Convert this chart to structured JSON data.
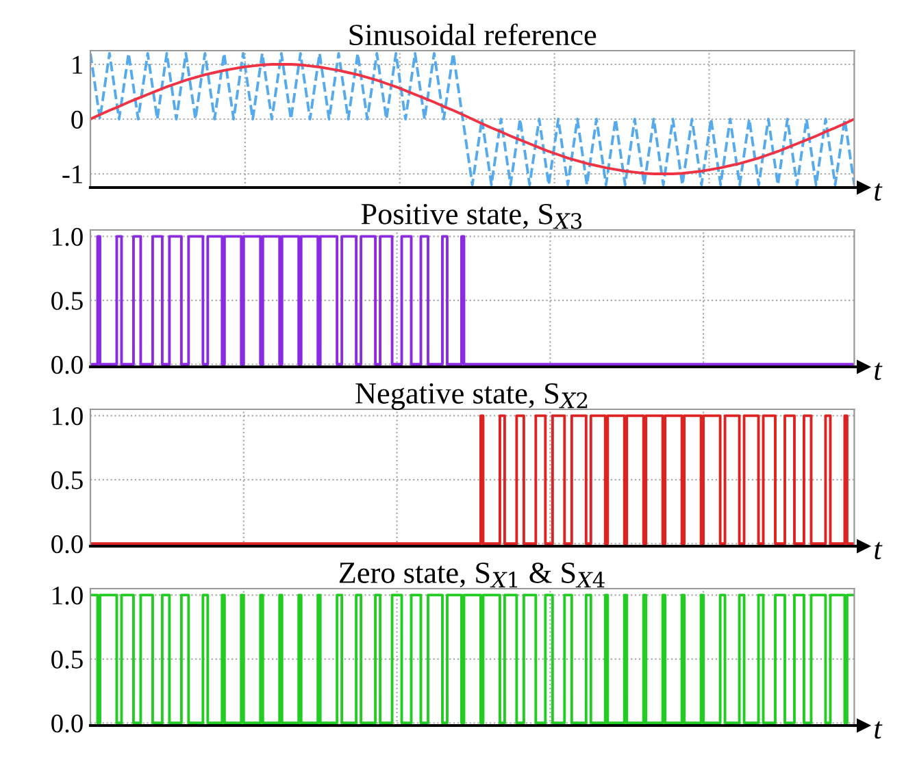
{
  "chart_data": [
    {
      "type": "line",
      "title": "Sinusoidal reference",
      "xlabel": "t",
      "ylim": [
        -1.25,
        1.25
      ],
      "yticks": [
        -1,
        0,
        1
      ],
      "grid": true,
      "tick_labels": "y",
      "categories": [
        null,
        null,
        null,
        null,
        null,
        null,
        null,
        null,
        null,
        null,
        null,
        null,
        null,
        null,
        null,
        null,
        null,
        null,
        null,
        null,
        null,
        null,
        null,
        null,
        null,
        null,
        null,
        null,
        null,
        null,
        null,
        null,
        null,
        null,
        null,
        null,
        null,
        null,
        null,
        null,
        null,
        null,
        null,
        null,
        null,
        null,
        null,
        null,
        null,
        null,
        null,
        null,
        null,
        null,
        null,
        null,
        null,
        null,
        null,
        null,
        null,
        null,
        null,
        null,
        null,
        null,
        null,
        null,
        null,
        null,
        null,
        null,
        null,
        null,
        null,
        null,
        null,
        null,
        null,
        null,
        null
      ],
      "series": [
        {
          "color": "#55aaee",
          "line_style": "dashed",
          "values": [
            1.2,
            0,
            1.2,
            0,
            1.2,
            0,
            1.2,
            0,
            1.2,
            0,
            1.2,
            0,
            1.2,
            0,
            1.2,
            0,
            1.2,
            0,
            1.2,
            0,
            1.2,
            0,
            1.2,
            0,
            1.2,
            0,
            1.2,
            0,
            1.2,
            0,
            1.2,
            0,
            1.2,
            0,
            1.2,
            0,
            1.2,
            0,
            1.2,
            0,
            -1.2,
            0,
            -1.2,
            0,
            -1.2,
            0,
            -1.2,
            0,
            -1.2,
            0,
            -1.2,
            0,
            -1.2,
            0,
            -1.2,
            0,
            -1.2,
            0,
            -1.2,
            0,
            -1.2,
            0,
            -1.2,
            0,
            -1.2,
            0,
            -1.2,
            0,
            -1.2,
            0,
            -1.2,
            0,
            -1.2,
            0,
            -1.2,
            0,
            -1.2,
            0,
            -1.2,
            0,
            -1.2
          ]
        },
        {
          "color": "#ee3344",
          "line_style": "solid",
          "values": [
            0,
            0.08,
            0.16,
            0.23,
            0.31,
            0.38,
            0.45,
            0.52,
            0.59,
            0.65,
            0.71,
            0.76,
            0.81,
            0.85,
            0.89,
            0.92,
            0.95,
            0.97,
            0.99,
            1,
            1,
            1,
            0.99,
            0.97,
            0.95,
            0.92,
            0.89,
            0.85,
            0.81,
            0.76,
            0.71,
            0.65,
            0.59,
            0.52,
            0.45,
            0.38,
            0.31,
            0.23,
            0.16,
            0.08,
            0,
            -0.08,
            -0.16,
            -0.23,
            -0.31,
            -0.38,
            -0.45,
            -0.52,
            -0.59,
            -0.65,
            -0.71,
            -0.76,
            -0.81,
            -0.85,
            -0.89,
            -0.92,
            -0.95,
            -0.97,
            -0.99,
            -1,
            -1,
            -1,
            -0.99,
            -0.97,
            -0.95,
            -0.92,
            -0.89,
            -0.85,
            -0.81,
            -0.76,
            -0.71,
            -0.65,
            -0.59,
            -0.52,
            -0.45,
            -0.38,
            -0.31,
            -0.23,
            -0.16,
            -0.08,
            0
          ]
        }
      ]
    },
    {
      "type": "step",
      "title": "Positive state, S$_{X3}$",
      "xlabel": "t",
      "ylim": [
        -0.02,
        1.05
      ],
      "yticks": [
        {
          "value": 0,
          "label": "0.0"
        },
        {
          "value": 0.5,
          "label": "0.5"
        },
        {
          "value": 1,
          "label": "1.0"
        }
      ],
      "grid": true,
      "tick_labels": "y",
      "categories": [
        null,
        null,
        null,
        null,
        null,
        null,
        null,
        null,
        null,
        null,
        null,
        null,
        null,
        null,
        null,
        null,
        null,
        null,
        null,
        null,
        null,
        null,
        null,
        null,
        null,
        null,
        null,
        null,
        null,
        null,
        null,
        null,
        null,
        null,
        null,
        null,
        null,
        null,
        null,
        null,
        null,
        null,
        null,
        null,
        null,
        null,
        null,
        null,
        null,
        null,
        null,
        null,
        null,
        null,
        null,
        null,
        null,
        null,
        null,
        null,
        null,
        null,
        null,
        null,
        null,
        null,
        null,
        null,
        null,
        null,
        null,
        null,
        null,
        null,
        null,
        null,
        null,
        null,
        null,
        null,
        null,
        null,
        null,
        null,
        null,
        null,
        null,
        null,
        null,
        null,
        null,
        null,
        null,
        null,
        null,
        null,
        null,
        null,
        null,
        null,
        null,
        null,
        null,
        null,
        null,
        null,
        null,
        null,
        null,
        null,
        null,
        null,
        null,
        null,
        null,
        null,
        null,
        null,
        null,
        null,
        null,
        null,
        null,
        null,
        null,
        null,
        null,
        null,
        null,
        null,
        null,
        null,
        null,
        null,
        null,
        null,
        null,
        null,
        null,
        null,
        null,
        null,
        null,
        null,
        null,
        null,
        null,
        null,
        null,
        null,
        null,
        null,
        null,
        null,
        null,
        null,
        null,
        null,
        null,
        null,
        null,
        null,
        null,
        null,
        null,
        null,
        null,
        null,
        null,
        null,
        null,
        null,
        null,
        null,
        null,
        null,
        null,
        null,
        null,
        null,
        null,
        null,
        null,
        null,
        null,
        null,
        null,
        null,
        null,
        null,
        null,
        null,
        null,
        null,
        null,
        null,
        null,
        null,
        null,
        null,
        null,
        null,
        null,
        null,
        null,
        null,
        null,
        null,
        null,
        null,
        null,
        null,
        null,
        null,
        null,
        null,
        null,
        null,
        null,
        null,
        null,
        null,
        null,
        null,
        null,
        null,
        null,
        null,
        null,
        null,
        null,
        null,
        null,
        null,
        null,
        null,
        null,
        null,
        null,
        null,
        null,
        null,
        null,
        null,
        null,
        null,
        null,
        null,
        null,
        null,
        null,
        null,
        null,
        null,
        null,
        null,
        null,
        null,
        null,
        null,
        null,
        null,
        null,
        null,
        null,
        null,
        null,
        null,
        null,
        null,
        null,
        null,
        null,
        null,
        null,
        null,
        null,
        null,
        null,
        null,
        null,
        null,
        null,
        null,
        null,
        null,
        null,
        null,
        null,
        null,
        null,
        null,
        null,
        null,
        null,
        null,
        null,
        null,
        null,
        null,
        null,
        null,
        null,
        null,
        null,
        null,
        null,
        null,
        null,
        null,
        null,
        null,
        null,
        null,
        null,
        null,
        null,
        null,
        null,
        null
      ],
      "series": [
        {
          "color": "#8a2be2",
          "line_style": "solid",
          "values": [
            0,
            0,
            0,
            1,
            0,
            0,
            0,
            0,
            0,
            0,
            0,
            1,
            1,
            0,
            0,
            0,
            0,
            0,
            1,
            1,
            1,
            0,
            0,
            0,
            0,
            0,
            1,
            1,
            1,
            1,
            0,
            0,
            0,
            1,
            1,
            1,
            1,
            1,
            0,
            0,
            0,
            1,
            1,
            1,
            1,
            1,
            1,
            0,
            0,
            1,
            1,
            1,
            1,
            1,
            1,
            0,
            1,
            1,
            1,
            1,
            1,
            1,
            1,
            0,
            1,
            1,
            1,
            1,
            1,
            1,
            1,
            0,
            1,
            1,
            1,
            1,
            1,
            1,
            1,
            0,
            1,
            1,
            1,
            1,
            1,
            1,
            1,
            0,
            1,
            1,
            1,
            1,
            1,
            1,
            1,
            0,
            1,
            1,
            1,
            1,
            1,
            1,
            1,
            0,
            0,
            1,
            1,
            1,
            1,
            1,
            1,
            0,
            0,
            1,
            1,
            1,
            1,
            1,
            1,
            0,
            0,
            1,
            1,
            1,
            1,
            1,
            0,
            0,
            0,
            0,
            1,
            1,
            1,
            1,
            0,
            0,
            0,
            0,
            1,
            1,
            1,
            0,
            0,
            0,
            0,
            0,
            0,
            1,
            1,
            0,
            0,
            0,
            0,
            0,
            0,
            1,
            0,
            0,
            0,
            0,
            0,
            0,
            0,
            0,
            0,
            0,
            0,
            0,
            0,
            0,
            0,
            0,
            0,
            0,
            0,
            0,
            0,
            0,
            0,
            0,
            0,
            0,
            0,
            0,
            0,
            0,
            0,
            0,
            0,
            0,
            0,
            0,
            0,
            0,
            0,
            0,
            0,
            0,
            0,
            0,
            0,
            0,
            0,
            0,
            0,
            0,
            0,
            0,
            0,
            0,
            0,
            0,
            0,
            0,
            0,
            0,
            0,
            0,
            0,
            0,
            0,
            0,
            0,
            0,
            0,
            0,
            0,
            0,
            0,
            0,
            0,
            0,
            0,
            0,
            0,
            0,
            0,
            0,
            0,
            0,
            0,
            0,
            0,
            0,
            0,
            0,
            0,
            0,
            0,
            0,
            0,
            0,
            0,
            0,
            0,
            0,
            0,
            0,
            0,
            0,
            0,
            0,
            0,
            0,
            0,
            0,
            0,
            0,
            0,
            0,
            0,
            0,
            0,
            0,
            0,
            0,
            0,
            0,
            0,
            0,
            0,
            0,
            0,
            0,
            0,
            0,
            0,
            0,
            0,
            0,
            0,
            0,
            0,
            0,
            0,
            0,
            0,
            0,
            0,
            0,
            0,
            0,
            0,
            0,
            0,
            0,
            0,
            0,
            0,
            0,
            0,
            0,
            0,
            0,
            0,
            0,
            0,
            0,
            0,
            0
          ]
        }
      ]
    },
    {
      "type": "step",
      "title": "Negative state, S$_{X2}$",
      "xlabel": "t",
      "ylim": [
        -0.02,
        1.05
      ],
      "yticks": [
        {
          "value": 0,
          "label": "0.0"
        },
        {
          "value": 0.5,
          "label": "0.5"
        },
        {
          "value": 1,
          "label": "1.0"
        }
      ],
      "grid": true,
      "tick_labels": "y",
      "categories": [
        null,
        null,
        null,
        null,
        null,
        null,
        null,
        null,
        null,
        null,
        null,
        null,
        null,
        null,
        null,
        null,
        null,
        null,
        null,
        null,
        null,
        null,
        null,
        null,
        null,
        null,
        null,
        null,
        null,
        null,
        null,
        null,
        null,
        null,
        null,
        null,
        null,
        null,
        null,
        null,
        null,
        null,
        null,
        null,
        null,
        null,
        null,
        null,
        null,
        null,
        null,
        null,
        null,
        null,
        null,
        null,
        null,
        null,
        null,
        null,
        null,
        null,
        null,
        null,
        null,
        null,
        null,
        null,
        null,
        null,
        null,
        null,
        null,
        null,
        null,
        null,
        null,
        null,
        null,
        null,
        null,
        null,
        null,
        null,
        null,
        null,
        null,
        null,
        null,
        null,
        null,
        null,
        null,
        null,
        null,
        null,
        null,
        null,
        null,
        null,
        null,
        null,
        null,
        null,
        null,
        null,
        null,
        null,
        null,
        null,
        null,
        null,
        null,
        null,
        null,
        null,
        null,
        null,
        null,
        null,
        null,
        null,
        null,
        null,
        null,
        null,
        null,
        null,
        null,
        null,
        null,
        null,
        null,
        null,
        null,
        null,
        null,
        null,
        null,
        null,
        null,
        null,
        null,
        null,
        null,
        null,
        null,
        null,
        null,
        null,
        null,
        null,
        null,
        null,
        null,
        null,
        null,
        null,
        null,
        null,
        null,
        null,
        null,
        null,
        null,
        null,
        null,
        null,
        null,
        null,
        null,
        null,
        null,
        null,
        null,
        null,
        null,
        null,
        null,
        null,
        null,
        null,
        null,
        null,
        null,
        null,
        null,
        null,
        null,
        null,
        null,
        null,
        null,
        null,
        null,
        null,
        null,
        null,
        null,
        null,
        null,
        null,
        null,
        null,
        null,
        null,
        null,
        null,
        null,
        null,
        null,
        null,
        null,
        null,
        null,
        null,
        null,
        null,
        null,
        null,
        null,
        null,
        null,
        null,
        null,
        null,
        null,
        null,
        null,
        null,
        null,
        null,
        null,
        null,
        null,
        null,
        null,
        null,
        null,
        null,
        null,
        null,
        null,
        null,
        null,
        null,
        null,
        null,
        null,
        null,
        null,
        null,
        null,
        null,
        null,
        null,
        null,
        null,
        null,
        null,
        null,
        null,
        null,
        null,
        null,
        null,
        null,
        null,
        null,
        null,
        null,
        null,
        null,
        null,
        null,
        null,
        null,
        null,
        null,
        null,
        null,
        null,
        null,
        null,
        null,
        null,
        null,
        null,
        null,
        null,
        null,
        null,
        null,
        null,
        null,
        null,
        null,
        null,
        null,
        null,
        null,
        null,
        null,
        null,
        null,
        null,
        null,
        null,
        null,
        null,
        null,
        null,
        null,
        null,
        null,
        null,
        null,
        null,
        null,
        null
      ],
      "series": [
        {
          "color": "#dd2222",
          "line_style": "solid",
          "values": [
            0,
            0,
            0,
            0,
            0,
            0,
            0,
            0,
            0,
            0,
            0,
            0,
            0,
            0,
            0,
            0,
            0,
            0,
            0,
            0,
            0,
            0,
            0,
            0,
            0,
            0,
            0,
            0,
            0,
            0,
            0,
            0,
            0,
            0,
            0,
            0,
            0,
            0,
            0,
            0,
            0,
            0,
            0,
            0,
            0,
            0,
            0,
            0,
            0,
            0,
            0,
            0,
            0,
            0,
            0,
            0,
            0,
            0,
            0,
            0,
            0,
            0,
            0,
            0,
            0,
            0,
            0,
            0,
            0,
            0,
            0,
            0,
            0,
            0,
            0,
            0,
            0,
            0,
            0,
            0,
            0,
            0,
            0,
            0,
            0,
            0,
            0,
            0,
            0,
            0,
            0,
            0,
            0,
            0,
            0,
            0,
            0,
            0,
            0,
            0,
            0,
            0,
            0,
            0,
            0,
            0,
            0,
            0,
            0,
            0,
            0,
            0,
            0,
            0,
            0,
            0,
            0,
            0,
            0,
            0,
            0,
            0,
            0,
            0,
            0,
            0,
            0,
            0,
            0,
            0,
            0,
            0,
            0,
            0,
            0,
            0,
            0,
            0,
            0,
            0,
            0,
            0,
            0,
            0,
            0,
            0,
            0,
            0,
            0,
            0,
            0,
            0,
            0,
            0,
            0,
            0,
            0,
            0,
            0,
            0,
            0,
            0,
            0,
            1,
            0,
            0,
            0,
            0,
            0,
            0,
            0,
            1,
            1,
            0,
            0,
            0,
            0,
            0,
            1,
            1,
            1,
            0,
            0,
            0,
            0,
            0,
            1,
            1,
            1,
            1,
            0,
            0,
            0,
            1,
            1,
            1,
            1,
            1,
            0,
            0,
            0,
            1,
            1,
            1,
            1,
            1,
            1,
            0,
            0,
            1,
            1,
            1,
            1,
            1,
            1,
            0,
            1,
            1,
            1,
            1,
            1,
            1,
            1,
            0,
            1,
            1,
            1,
            1,
            1,
            1,
            1,
            0,
            1,
            1,
            1,
            1,
            1,
            1,
            1,
            0,
            1,
            1,
            1,
            1,
            1,
            1,
            1,
            0,
            1,
            1,
            1,
            1,
            1,
            1,
            1,
            0,
            1,
            1,
            1,
            1,
            1,
            1,
            1,
            0,
            0,
            1,
            1,
            1,
            1,
            1,
            1,
            0,
            0,
            1,
            1,
            1,
            1,
            1,
            1,
            0,
            0,
            1,
            1,
            1,
            1,
            1,
            0,
            0,
            0,
            0,
            1,
            1,
            1,
            1,
            0,
            0,
            0,
            0,
            1,
            1,
            1,
            0,
            0,
            0,
            0,
            0,
            0,
            1,
            1,
            0,
            0,
            0,
            0,
            0,
            0,
            1,
            0,
            0,
            0,
            0
          ]
        }
      ]
    },
    {
      "type": "step",
      "title": "Zero state, S$_{X1}$ & S$_{X4}$",
      "xlabel": "t",
      "ylim": [
        -0.02,
        1.05
      ],
      "yticks": [
        {
          "value": 0,
          "label": "0.0"
        },
        {
          "value": 0.5,
          "label": "0.5"
        },
        {
          "value": 1,
          "label": "1.0"
        }
      ],
      "grid": true,
      "tick_labels": "y",
      "categories": [
        null,
        null,
        null,
        null,
        null,
        null,
        null,
        null,
        null,
        null,
        null,
        null,
        null,
        null,
        null,
        null,
        null,
        null,
        null,
        null,
        null,
        null,
        null,
        null,
        null,
        null,
        null,
        null,
        null,
        null,
        null,
        null,
        null,
        null,
        null,
        null,
        null,
        null,
        null,
        null,
        null,
        null,
        null,
        null,
        null,
        null,
        null,
        null,
        null,
        null,
        null,
        null,
        null,
        null,
        null,
        null,
        null,
        null,
        null,
        null,
        null,
        null,
        null,
        null,
        null,
        null,
        null,
        null,
        null,
        null,
        null,
        null,
        null,
        null,
        null,
        null,
        null,
        null,
        null,
        null,
        null,
        null,
        null,
        null,
        null,
        null,
        null,
        null,
        null,
        null,
        null,
        null,
        null,
        null,
        null,
        null,
        null,
        null,
        null,
        null,
        null,
        null,
        null,
        null,
        null,
        null,
        null,
        null,
        null,
        null,
        null,
        null,
        null,
        null,
        null,
        null,
        null,
        null,
        null,
        null,
        null,
        null,
        null,
        null,
        null,
        null,
        null,
        null,
        null,
        null,
        null,
        null,
        null,
        null,
        null,
        null,
        null,
        null,
        null,
        null,
        null,
        null,
        null,
        null,
        null,
        null,
        null,
        null,
        null,
        null,
        null,
        null,
        null,
        null,
        null,
        null,
        null,
        null,
        null,
        null,
        null,
        null,
        null,
        null,
        null,
        null,
        null,
        null,
        null,
        null,
        null,
        null,
        null,
        null,
        null,
        null,
        null,
        null,
        null,
        null,
        null,
        null,
        null,
        null,
        null,
        null,
        null,
        null,
        null,
        null,
        null,
        null,
        null,
        null,
        null,
        null,
        null,
        null,
        null,
        null,
        null,
        null,
        null,
        null,
        null,
        null,
        null,
        null,
        null,
        null,
        null,
        null,
        null,
        null,
        null,
        null,
        null,
        null,
        null,
        null,
        null,
        null,
        null,
        null,
        null,
        null,
        null,
        null,
        null,
        null,
        null,
        null,
        null,
        null,
        null,
        null,
        null,
        null,
        null,
        null,
        null,
        null,
        null,
        null,
        null,
        null,
        null,
        null,
        null,
        null,
        null,
        null,
        null,
        null,
        null,
        null,
        null,
        null,
        null,
        null,
        null,
        null,
        null,
        null,
        null,
        null,
        null,
        null,
        null,
        null,
        null,
        null,
        null,
        null,
        null,
        null,
        null,
        null,
        null,
        null,
        null,
        null,
        null,
        null,
        null,
        null,
        null,
        null,
        null,
        null,
        null,
        null,
        null,
        null,
        null,
        null,
        null,
        null,
        null,
        null,
        null,
        null,
        null,
        null,
        null,
        null,
        null,
        null,
        null,
        null,
        null,
        null,
        null,
        null,
        null,
        null,
        null,
        null,
        null,
        null
      ],
      "series": [
        {
          "color": "#22cc22",
          "line_style": "solid",
          "values": [
            1,
            1,
            1,
            0,
            1,
            1,
            1,
            1,
            1,
            1,
            1,
            0,
            0,
            1,
            1,
            1,
            1,
            1,
            0,
            0,
            0,
            1,
            1,
            1,
            1,
            1,
            0,
            0,
            0,
            0,
            1,
            1,
            1,
            0,
            0,
            0,
            0,
            0,
            1,
            1,
            1,
            0,
            0,
            0,
            0,
            0,
            0,
            1,
            1,
            0,
            0,
            0,
            0,
            0,
            0,
            1,
            0,
            0,
            0,
            0,
            0,
            0,
            0,
            1,
            0,
            0,
            0,
            0,
            0,
            0,
            0,
            1,
            0,
            0,
            0,
            0,
            0,
            0,
            0,
            1,
            0,
            0,
            0,
            0,
            0,
            0,
            0,
            1,
            0,
            0,
            0,
            0,
            0,
            0,
            0,
            1,
            0,
            0,
            0,
            0,
            0,
            0,
            0,
            1,
            1,
            0,
            0,
            0,
            0,
            0,
            0,
            1,
            1,
            0,
            0,
            0,
            0,
            0,
            0,
            1,
            1,
            0,
            0,
            0,
            0,
            0,
            1,
            1,
            1,
            1,
            0,
            0,
            0,
            0,
            1,
            1,
            1,
            1,
            0,
            0,
            0,
            1,
            1,
            1,
            1,
            1,
            1,
            0,
            0,
            1,
            1,
            1,
            1,
            1,
            1,
            0,
            1,
            1,
            1,
            1,
            1,
            1,
            1,
            0,
            1,
            1,
            1,
            1,
            1,
            1,
            1,
            0,
            0,
            1,
            1,
            1,
            1,
            1,
            0,
            0,
            0,
            1,
            1,
            1,
            1,
            1,
            0,
            0,
            0,
            0,
            1,
            1,
            1,
            0,
            0,
            0,
            0,
            0,
            1,
            1,
            1,
            0,
            0,
            0,
            0,
            0,
            0,
            1,
            1,
            0,
            0,
            0,
            0,
            0,
            0,
            1,
            0,
            0,
            0,
            0,
            0,
            0,
            0,
            1,
            0,
            0,
            0,
            0,
            0,
            0,
            0,
            1,
            0,
            0,
            0,
            0,
            0,
            0,
            0,
            1,
            0,
            0,
            0,
            0,
            0,
            0,
            0,
            1,
            0,
            0,
            0,
            0,
            0,
            0,
            0,
            1,
            0,
            0,
            0,
            0,
            0,
            0,
            0,
            1,
            1,
            0,
            0,
            0,
            0,
            0,
            0,
            1,
            1,
            0,
            0,
            0,
            0,
            0,
            0,
            1,
            1,
            0,
            0,
            0,
            0,
            0,
            1,
            1,
            1,
            1,
            0,
            0,
            0,
            0,
            1,
            1,
            1,
            1,
            0,
            0,
            0,
            1,
            1,
            1,
            1,
            1,
            1,
            0,
            0,
            1,
            1,
            1,
            1,
            1,
            1,
            0,
            1,
            1,
            1,
            1
          ]
        }
      ]
    }
  ]
}
